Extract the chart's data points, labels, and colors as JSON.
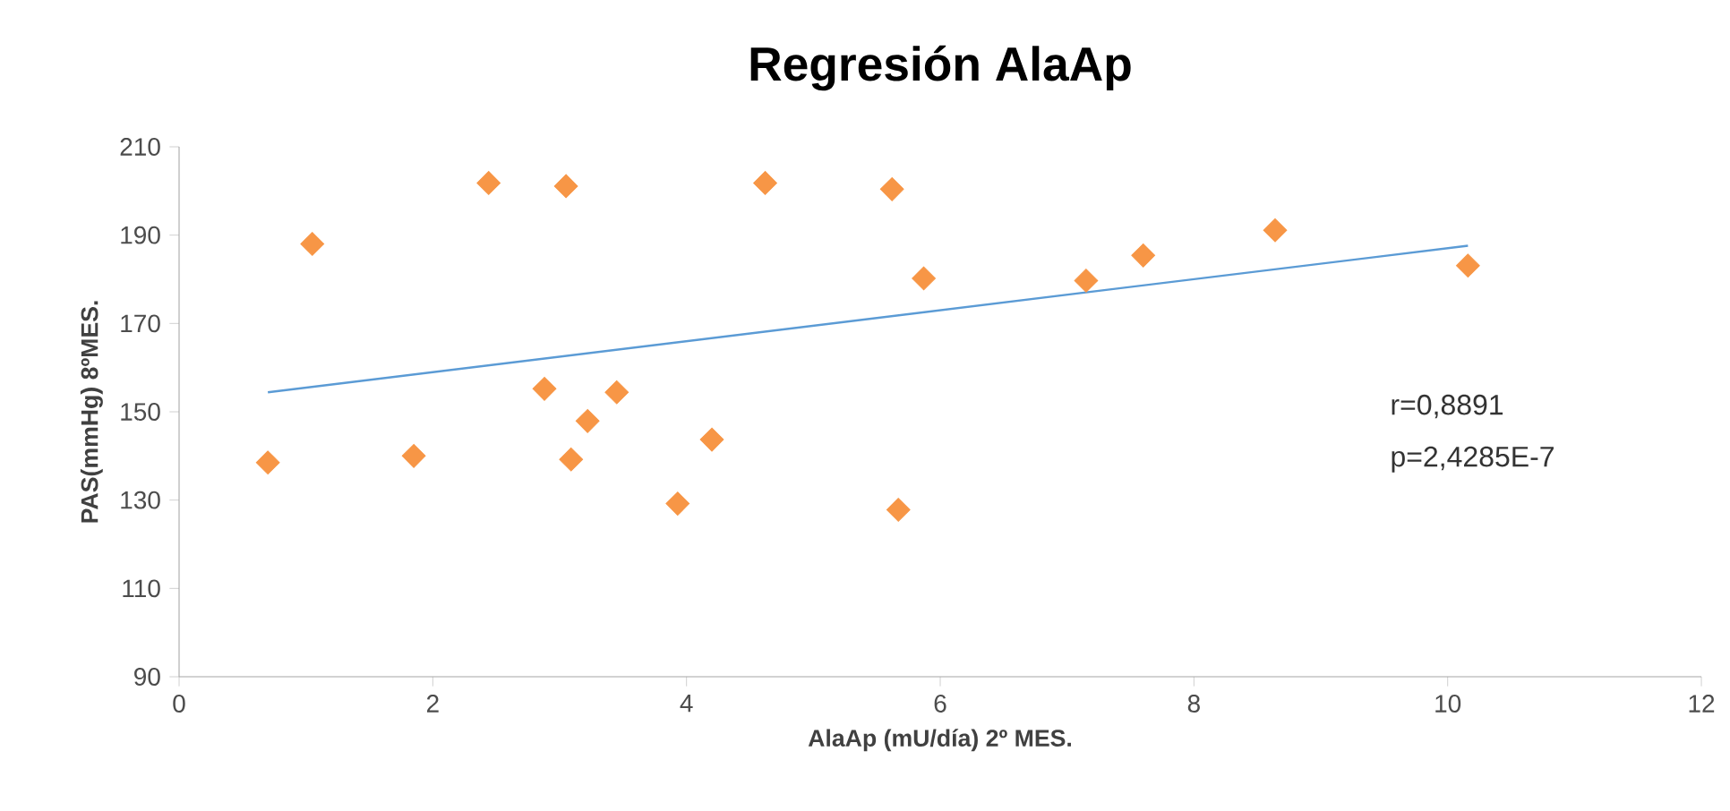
{
  "chart_data": {
    "type": "scatter",
    "title": "Regresión AlaAp",
    "xlabel": "AlaAp (mU/día) 2º MES.",
    "ylabel": "PAS(mmHg) 8ºMES.",
    "annotations": [
      "r=0,8891",
      "p=2,4285E-7"
    ],
    "xlim": [
      0,
      12
    ],
    "ylim": [
      90,
      210
    ],
    "xticks": [
      0,
      2,
      4,
      6,
      8,
      10,
      12
    ],
    "yticks": [
      90,
      110,
      130,
      150,
      170,
      190,
      210
    ],
    "grid": false,
    "series": [
      {
        "marker": "diamond",
        "color": "#f79646",
        "x": [
          0.7,
          1.05,
          1.85,
          2.44,
          2.88,
          3.05,
          3.09,
          3.22,
          3.45,
          3.93,
          4.2,
          4.62,
          5.62,
          5.67,
          5.87,
          7.15,
          7.6,
          8.64,
          10.16
        ],
        "values": [
          138.5,
          188.0,
          140.0,
          201.8,
          155.2,
          201.1,
          139.2,
          147.9,
          154.4,
          129.2,
          143.7,
          201.8,
          200.4,
          127.8,
          180.2,
          179.7,
          185.4,
          191.1,
          183.1
        ]
      },
      {
        "type": "line",
        "color": "#5b9bd5",
        "x": [
          0.7,
          10.16
        ],
        "values": [
          154.4,
          187.6
        ]
      }
    ]
  }
}
